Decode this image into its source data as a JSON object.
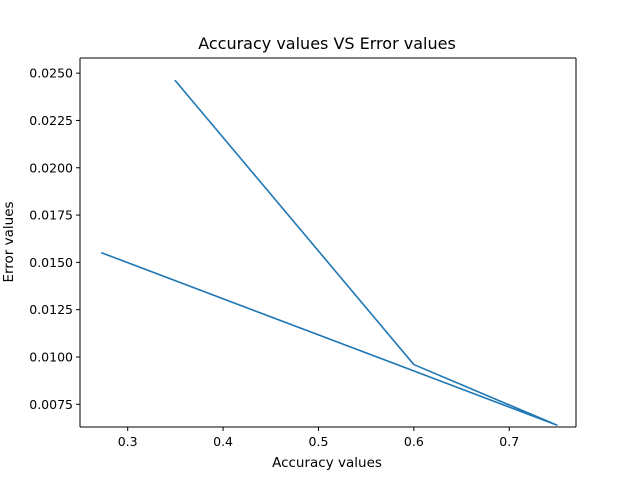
{
  "chart_data": {
    "type": "line",
    "title": "Accuracy values VS Error values",
    "xlabel": "Accuracy values",
    "ylabel": "Error values",
    "xlim": [
      0.25,
      0.77
    ],
    "ylim": [
      0.0063,
      0.0258
    ],
    "x_ticks": [
      0.3,
      0.4,
      0.5,
      0.6,
      0.7
    ],
    "x_tick_labels": [
      "0.3",
      "0.4",
      "0.5",
      "0.6",
      "0.7"
    ],
    "y_ticks": [
      0.0075,
      0.01,
      0.0125,
      0.015,
      0.0175,
      0.02,
      0.0225,
      0.025
    ],
    "y_tick_labels": [
      "0.0075",
      "0.0100",
      "0.0125",
      "0.0150",
      "0.0175",
      "0.0200",
      "0.0225",
      "0.0250"
    ],
    "grid": false,
    "series": [
      {
        "color": "#1f77b4",
        "x": [
          0.35,
          0.6,
          0.75,
          0.273
        ],
        "y": [
          0.0246,
          0.0096,
          0.0064,
          0.0155
        ]
      }
    ]
  }
}
